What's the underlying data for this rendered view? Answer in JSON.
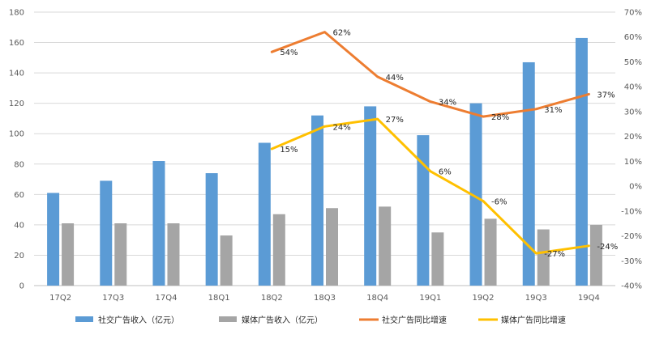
{
  "chart_data": {
    "type": "bar+line",
    "title": "",
    "categories": [
      "17Q2",
      "17Q3",
      "17Q4",
      "18Q1",
      "18Q2",
      "18Q3",
      "18Q4",
      "19Q1",
      "19Q2",
      "19Q3",
      "19Q4"
    ],
    "left_axis": {
      "ylim": [
        0,
        180
      ],
      "ticks": [
        "0",
        "20",
        "40",
        "60",
        "80",
        "100",
        "120",
        "140",
        "160",
        "180"
      ]
    },
    "right_axis": {
      "ylim": [
        -40,
        70
      ],
      "ticks": [
        "-40%",
        "-30%",
        "-20%",
        "-10%",
        "0%",
        "10%",
        "20%",
        "30%",
        "40%",
        "50%",
        "60%",
        "70%"
      ]
    },
    "series": [
      {
        "name": "社交广告收入（亿元）",
        "type": "bar",
        "axis": "left",
        "color": "#5B9BD5",
        "values": [
          61,
          69,
          82,
          74,
          94,
          112,
          118,
          99,
          120,
          147,
          163
        ]
      },
      {
        "name": "媒体广告收入（亿元）",
        "type": "bar",
        "axis": "left",
        "color": "#A5A5A5",
        "values": [
          41,
          41,
          41,
          33,
          47,
          51,
          52,
          35,
          44,
          37,
          40
        ]
      },
      {
        "name": "社交广告同比增速",
        "type": "line",
        "axis": "right",
        "color": "#ED7D31",
        "values": [
          null,
          null,
          null,
          null,
          54,
          62,
          44,
          34,
          28,
          31,
          37
        ],
        "labels": [
          "",
          "",
          "",
          "",
          "54%",
          "62%",
          "44%",
          "34%",
          "28%",
          "31%",
          "37%"
        ]
      },
      {
        "name": "媒体广告同比增速",
        "type": "line",
        "axis": "right",
        "color": "#FFC000",
        "values": [
          null,
          null,
          null,
          null,
          15,
          24,
          27,
          6,
          -6,
          -27,
          -24
        ],
        "labels": [
          "",
          "",
          "",
          "",
          "15%",
          "24%",
          "27%",
          "6%",
          "-6%",
          "-27%",
          "-24%"
        ]
      }
    ],
    "legend_position": "bottom",
    "grid": true
  }
}
